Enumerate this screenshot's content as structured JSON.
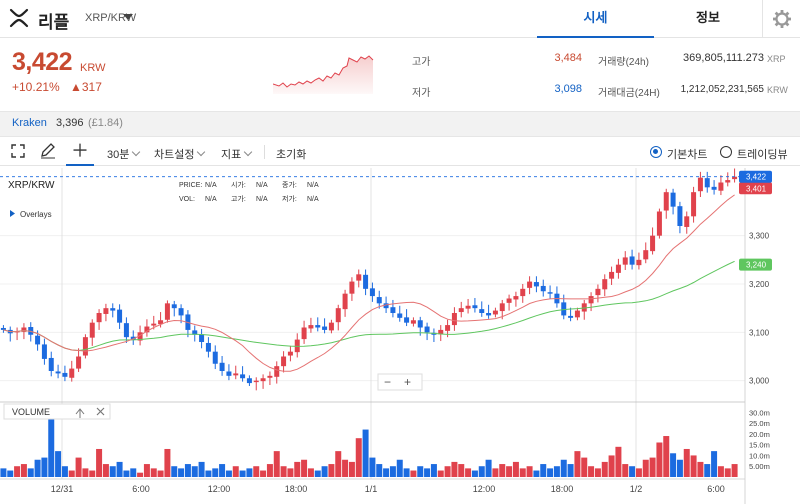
{
  "header": {
    "coin_name": "리플",
    "pair": "XRP/KRW",
    "tab_quote": "시세",
    "tab_info": "정보"
  },
  "price": {
    "current": "3,422",
    "unit": "KRW",
    "change_pct": "+10.21%",
    "change_amt": "▲317"
  },
  "stats": {
    "high_label": "고가",
    "high": "3,484",
    "low_label": "저가",
    "low": "3,098",
    "volume_label": "거래량(24h)",
    "volume": "369,805,111.273",
    "volume_unit": "XRP",
    "amount_label": "거래대금(24H)",
    "amount": "1,212,052,231,565",
    "amount_unit": "KRW"
  },
  "exchange": {
    "name": "Kraken",
    "price": "3,396",
    "gbp": "(£1.84)"
  },
  "toolbar": {
    "interval": "30분",
    "chart_settings": "차트설정",
    "indicators": "지표",
    "reset": "초기화",
    "basic_chart": "기본차트",
    "trading_view": "트레이딩뷰"
  },
  "chart_info": {
    "symbol": "XRP/KRW",
    "overlays": "Overlays",
    "price_label": "PRICE:",
    "price_val": "N/A",
    "open_label": "시가:",
    "open_val": "N/A",
    "close_label": "종가:",
    "close_val": "N/A",
    "vol_label": "VOL:",
    "vol_val": "N/A",
    "high_label": "고가:",
    "high_val": "N/A",
    "low_label": "저가:",
    "low_val": "N/A",
    "volume_label": "VOLUME",
    "zoom_out": "−",
    "zoom_in": "+"
  },
  "colors": {
    "up": "#e0424c",
    "down": "#1c6be0",
    "ma_short": "#e57373",
    "ma_long": "#5fc65f",
    "accent": "#1261c4"
  },
  "chart_data": {
    "type": "candlestick",
    "interval": "30m",
    "y_range": [
      2960,
      3440
    ],
    "y_ticks": [
      "3,000",
      "3,100",
      "3,200",
      "3,300"
    ],
    "volume_ticks": [
      "5.00m",
      "10.0m",
      "15.0m",
      "20.0m",
      "25.0m",
      "30.0m"
    ],
    "x_labels": [
      "12/31",
      "6:00",
      "12:00",
      "18:00",
      "1/1",
      "12:00",
      "18:00",
      "1/2",
      "6:00"
    ],
    "last_price_tag": "3,422",
    "ma_short_tag": "3,401",
    "ma_long_tag": "3,240",
    "close": [
      3105,
      3098,
      3102,
      3110,
      3095,
      3075,
      3045,
      3020,
      3015,
      3008,
      3025,
      3050,
      3090,
      3120,
      3140,
      3150,
      3145,
      3120,
      3090,
      3085,
      3100,
      3112,
      3118,
      3125,
      3160,
      3150,
      3135,
      3105,
      3095,
      3080,
      3060,
      3035,
      3020,
      3010,
      3015,
      3005,
      2995,
      3000,
      3005,
      3010,
      3030,
      3050,
      3060,
      3085,
      3110,
      3115,
      3110,
      3105,
      3120,
      3150,
      3180,
      3205,
      3220,
      3190,
      3175,
      3160,
      3150,
      3140,
      3130,
      3120,
      3125,
      3110,
      3100,
      3095,
      3105,
      3115,
      3140,
      3150,
      3155,
      3150,
      3140,
      3135,
      3145,
      3160,
      3170,
      3175,
      3190,
      3205,
      3195,
      3185,
      3180,
      3160,
      3135,
      3130,
      3145,
      3160,
      3175,
      3190,
      3210,
      3225,
      3240,
      3255,
      3240,
      3250,
      3270,
      3300,
      3350,
      3390,
      3360,
      3320,
      3340,
      3390,
      3420,
      3400,
      3395,
      3410,
      3415,
      3422
    ],
    "volume": [
      4,
      3,
      5,
      6,
      4,
      8,
      9,
      30,
      12,
      5,
      3,
      9,
      4,
      3,
      13,
      6,
      5,
      7,
      3,
      4,
      2,
      6,
      4,
      3,
      13,
      5,
      4,
      6,
      5,
      7,
      3,
      4,
      6,
      3,
      5,
      3,
      4,
      5,
      3,
      6,
      12,
      5,
      4,
      7,
      8,
      4,
      3,
      5,
      6,
      12,
      8,
      7,
      18,
      22,
      9,
      6,
      4,
      5,
      8,
      4,
      3,
      5,
      4,
      6,
      3,
      5,
      7,
      6,
      4,
      3,
      5,
      8,
      4,
      6,
      5,
      7,
      4,
      5,
      3,
      6,
      4,
      5,
      8,
      6,
      12,
      9,
      5,
      4,
      7,
      10,
      14,
      6,
      5,
      4,
      8,
      9,
      16,
      19,
      11,
      8,
      13,
      10,
      7,
      6,
      12,
      5,
      4,
      6
    ]
  }
}
